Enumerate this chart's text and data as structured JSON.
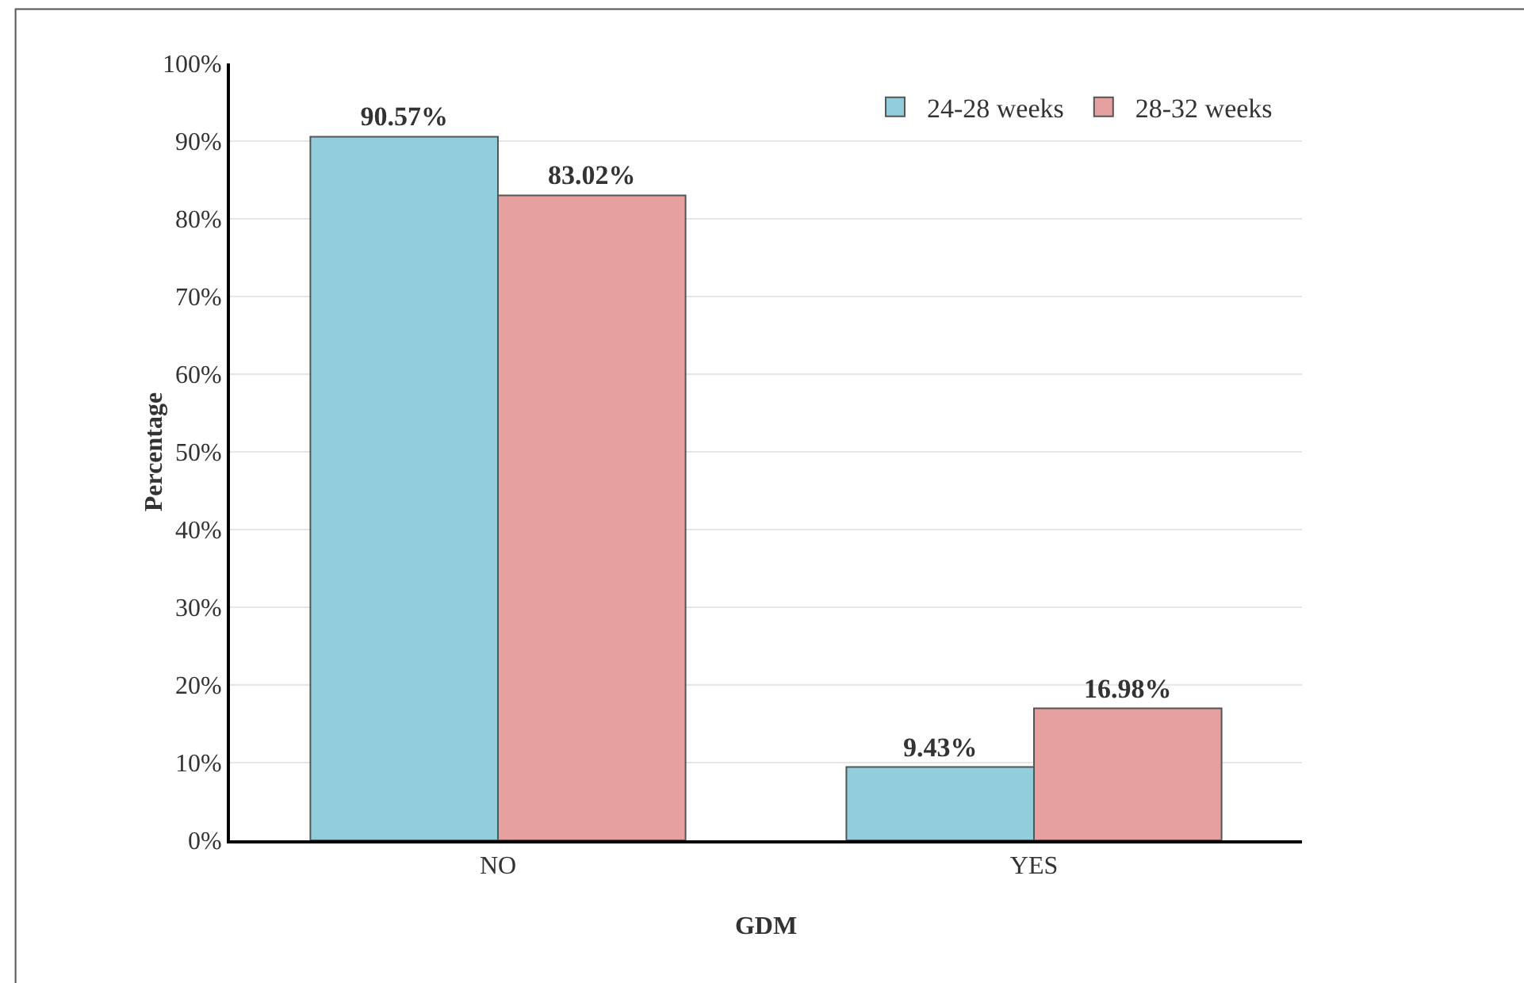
{
  "chart_data": {
    "type": "bar",
    "xlabel": "GDM",
    "ylabel": "Percentage",
    "categories": [
      "NO",
      "YES"
    ],
    "series": [
      {
        "name": "24-28 weeks",
        "color": "#92cddc",
        "values": [
          90.57,
          9.43
        ],
        "value_labels": [
          "90.57%",
          "9.43%"
        ]
      },
      {
        "name": "28-32 weeks",
        "color": "#e6a0a0",
        "values": [
          83.02,
          16.98
        ],
        "value_labels": [
          "83.02%",
          "16.98%"
        ]
      }
    ],
    "ylim": [
      0,
      100
    ],
    "yticks": [
      {
        "value": 0,
        "label": "0%"
      },
      {
        "value": 10,
        "label": "10%"
      },
      {
        "value": 20,
        "label": "20%"
      },
      {
        "value": 30,
        "label": "30%"
      },
      {
        "value": 40,
        "label": "40%"
      },
      {
        "value": 50,
        "label": "50%"
      },
      {
        "value": 60,
        "label": "60%"
      },
      {
        "value": 70,
        "label": "70%"
      },
      {
        "value": 80,
        "label": "80%"
      },
      {
        "value": 90,
        "label": "90%"
      },
      {
        "value": 100,
        "label": "100%"
      }
    ],
    "grid": "y",
    "legend": "top right"
  }
}
